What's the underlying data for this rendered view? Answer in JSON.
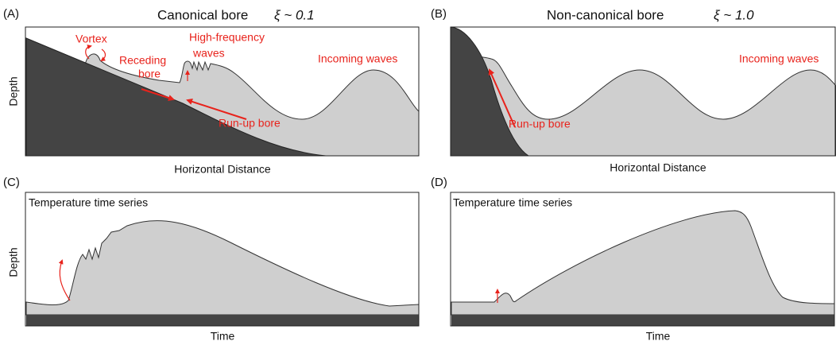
{
  "panels": [
    {
      "tag": "(A)",
      "title": "Canonical bore",
      "param": "ξ ~ 0.1",
      "y_label": "Depth",
      "x_label": "Horizontal Distance",
      "labels": {
        "vortex": "Vortex",
        "receding": [
          "Receding",
          "bore"
        ],
        "hf": [
          "High-frequency",
          "waves"
        ],
        "incoming": "Incoming waves",
        "runup": "Run-up bore"
      }
    },
    {
      "tag": "(B)",
      "title": "Non-canonical bore",
      "param": "ξ ~ 1.0",
      "x_label": "Horizontal Distance",
      "labels": {
        "incoming": "Incoming waves",
        "runup": "Run-up bore"
      }
    },
    {
      "tag": "(C)",
      "subtitle": "Temperature time series",
      "y_label": "Depth",
      "x_label": "Time"
    },
    {
      "tag": "(D)",
      "subtitle": "Temperature time series",
      "x_label": "Time"
    }
  ]
}
